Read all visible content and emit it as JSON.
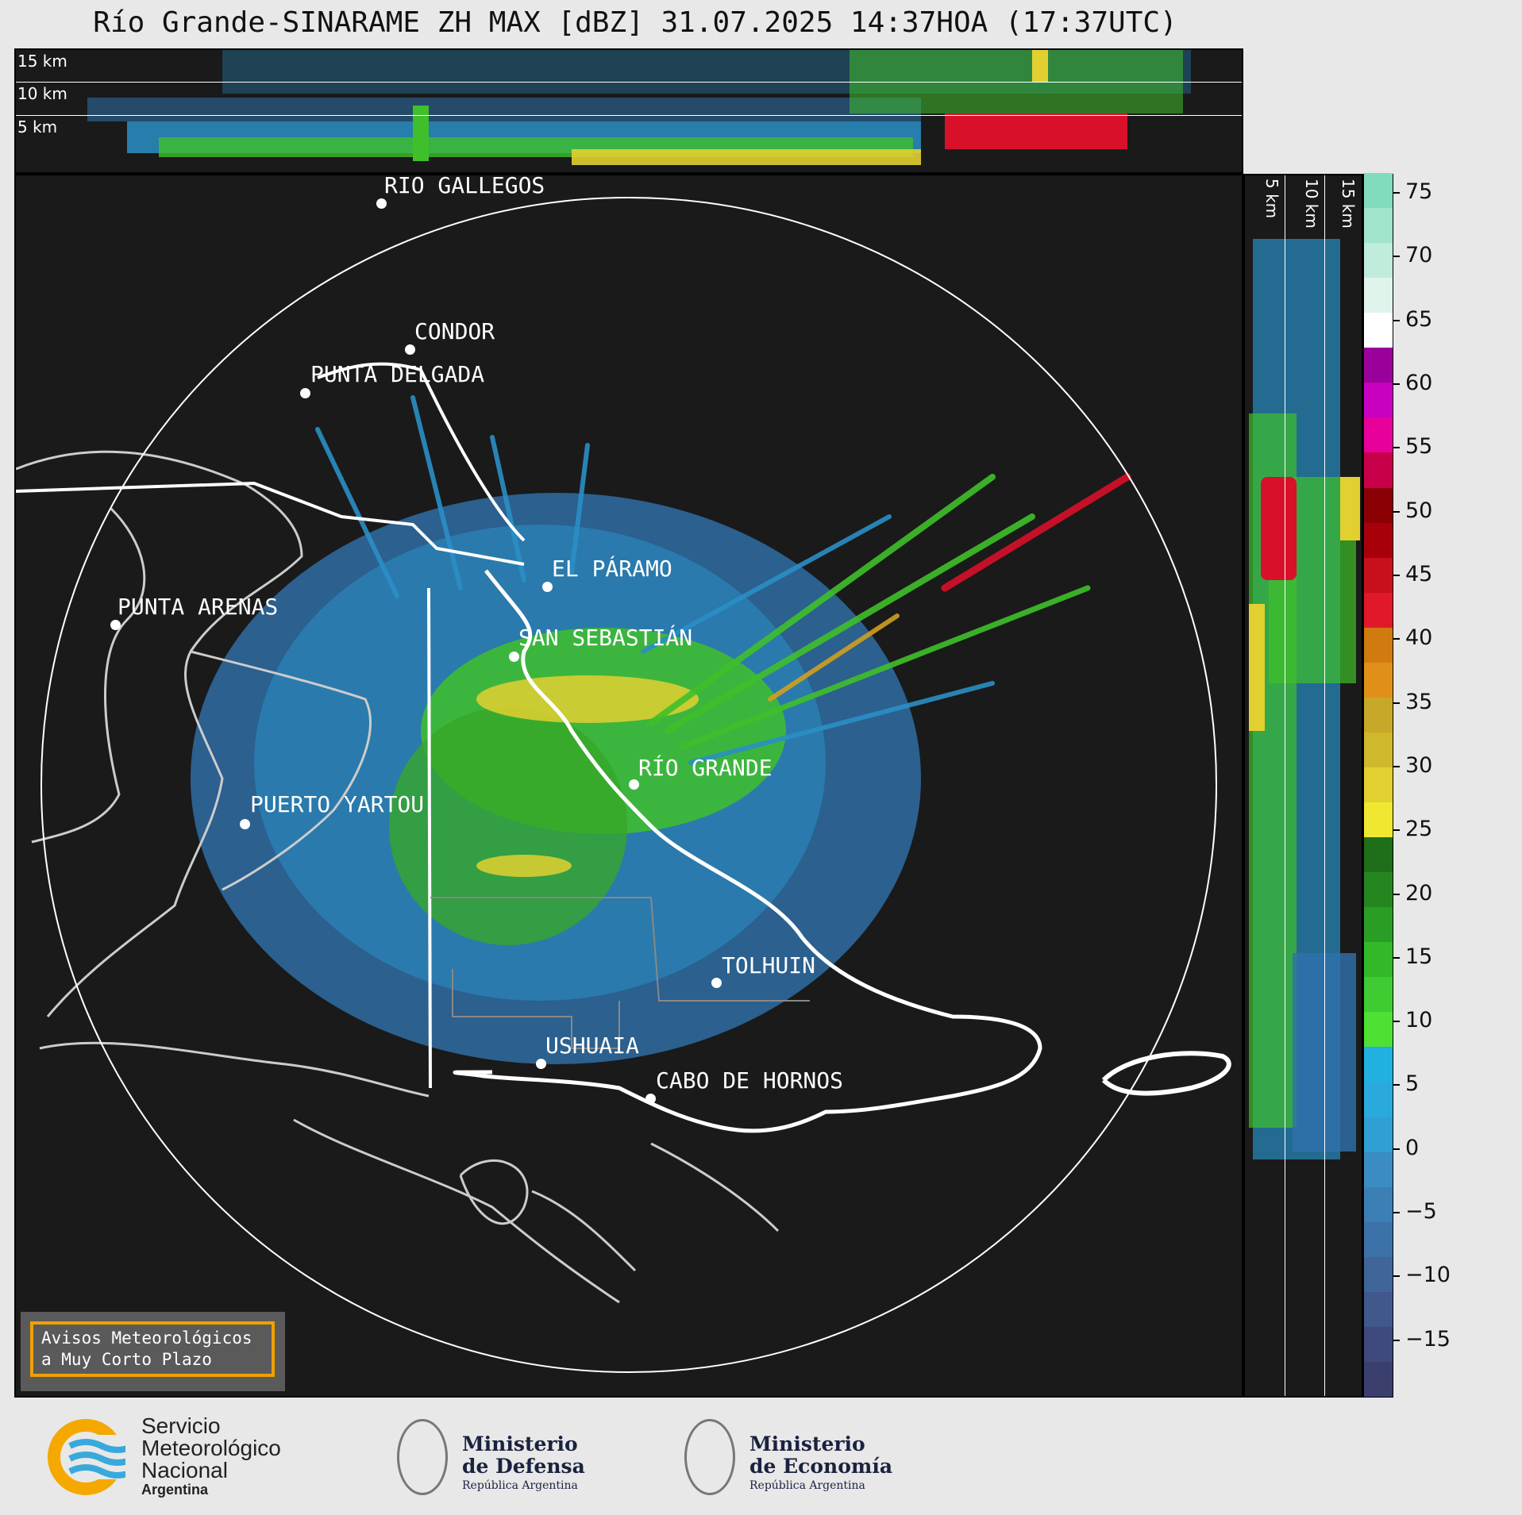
{
  "title": "Río Grande-SINARAME ZH MAX [dBZ] 31.07.2025 14:37HOA (17:37UTC)",
  "top_panel": {
    "alt_labels": [
      "15 km",
      "10 km",
      "5 km"
    ]
  },
  "side_panel": {
    "alt_labels": [
      "5 km",
      "10 km",
      "15 km"
    ]
  },
  "cities": [
    {
      "label": "RÍO GALLEGOS"
    },
    {
      "label": "CONDOR"
    },
    {
      "label": "PUNTA DELGADA"
    },
    {
      "label": "PUNTA ARENAS"
    },
    {
      "label": "EL PÁRAMO"
    },
    {
      "label": "SAN SEBASTIÁN"
    },
    {
      "label": "RÍO GRANDE"
    },
    {
      "label": "PUERTO YARTOU"
    },
    {
      "label": "TOLHUIN"
    },
    {
      "label": "USHUAIA"
    },
    {
      "label": "CABO DE HORNOS"
    }
  ],
  "colorbar": {
    "unit": "dBZ",
    "tick_labels": [
      "75",
      "70",
      "65",
      "60",
      "55",
      "50",
      "45",
      "40",
      "35",
      "30",
      "25",
      "20",
      "15",
      "10",
      "5",
      "0",
      "−5",
      "−10",
      "−15"
    ],
    "colors": [
      "#3a3f6e",
      "#3e4a7c",
      "#41588c",
      "#3f6599",
      "#3d72a8",
      "#3b7fb5",
      "#3a8cc2",
      "#2f9fd4",
      "#2aa9dc",
      "#22b0e0",
      "#4ee033",
      "#3fcc33",
      "#33b82a",
      "#2a9e24",
      "#25861f",
      "#1f6e1a",
      "#f0e830",
      "#e2d030",
      "#d0b82c",
      "#c8a828",
      "#e09018",
      "#d07a10",
      "#e0182a",
      "#c8101c",
      "#a8000a",
      "#8a0004",
      "#c8004a",
      "#e8009a",
      "#c800c0",
      "#9a009a",
      "#ffffff",
      "#e0f4ec",
      "#c0ecdc",
      "#a0e4cc",
      "#80dcbc"
    ]
  },
  "avisos": {
    "line1": "Avisos Meteorológicos",
    "line2": "a Muy Corto Plazo"
  },
  "logos": {
    "smn_line1": "Servicio",
    "smn_line2": "Meteorológico",
    "smn_line3": "Nacional",
    "smn_line4": "Argentina",
    "defensa_line1": "Ministerio",
    "defensa_line2": "de Defensa",
    "defensa_line3": "República Argentina",
    "economia_line1": "Ministerio",
    "economia_line2": "de Economía",
    "economia_line3": "República Argentina"
  }
}
